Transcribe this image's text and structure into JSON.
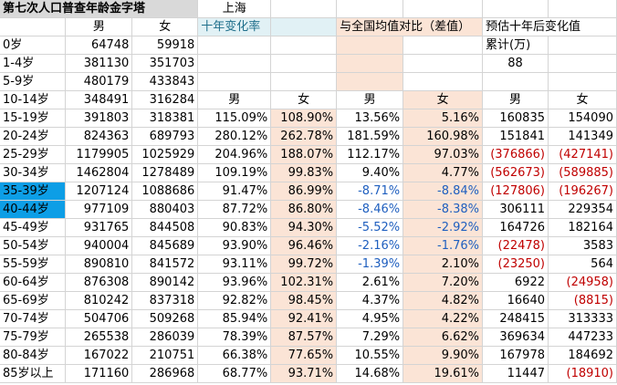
{
  "title": "第七次人口普查年龄金字塔",
  "region": "上海",
  "headers": {
    "male": "男",
    "female": "女",
    "change_rate": "十年变化率",
    "vs_national": "与全国均值对比（差值）",
    "forecast": "预估十年后变化值",
    "cumulative": "累计(万)",
    "cumulative_value": "88"
  },
  "rows": [
    {
      "age": "0岁",
      "m": "64748",
      "f": "59918",
      "mr": "",
      "fr": "",
      "md": "",
      "fd": "",
      "mf": "",
      "ff": ""
    },
    {
      "age": "1-4岁",
      "m": "381130",
      "f": "351703",
      "mr": "",
      "fr": "",
      "md": "",
      "fd": "",
      "mf": "",
      "ff": ""
    },
    {
      "age": "5-9岁",
      "m": "480179",
      "f": "433843",
      "mr": "",
      "fr": "",
      "md": "",
      "fd": "",
      "mf": "",
      "ff": ""
    },
    {
      "age": "10-14岁",
      "m": "348491",
      "f": "316284",
      "mr": "",
      "fr": "",
      "md": "",
      "fd": "",
      "mf": "",
      "ff": ""
    },
    {
      "age": "15-19岁",
      "m": "391803",
      "f": "318381",
      "mr": "115.09%",
      "fr": "108.90%",
      "md": "13.56%",
      "fd": "5.16%",
      "mf": "160835",
      "ff": "154090"
    },
    {
      "age": "20-24岁",
      "m": "824363",
      "f": "689793",
      "mr": "280.12%",
      "fr": "262.78%",
      "md": "181.59%",
      "fd": "160.98%",
      "mf": "151841",
      "ff": "141349"
    },
    {
      "age": "25-29岁",
      "m": "1179905",
      "f": "1025929",
      "mr": "204.96%",
      "fr": "188.07%",
      "md": "112.17%",
      "fd": "97.03%",
      "mf": "(376866)",
      "ff": "(427141)"
    },
    {
      "age": "30-34岁",
      "m": "1462804",
      "f": "1278489",
      "mr": "109.19%",
      "fr": "99.83%",
      "md": "9.40%",
      "fd": "4.77%",
      "mf": "(562673)",
      "ff": "(589885)"
    },
    {
      "age": "35-39岁",
      "m": "1207124",
      "f": "1088686",
      "mr": "91.47%",
      "fr": "86.99%",
      "md": "-8.71%",
      "fd": "-8.84%",
      "mf": "(127806)",
      "ff": "(196267)"
    },
    {
      "age": "40-44岁",
      "m": "977109",
      "f": "880403",
      "mr": "87.72%",
      "fr": "86.80%",
      "md": "-8.46%",
      "fd": "-8.38%",
      "mf": "306111",
      "ff": "229354"
    },
    {
      "age": "45-49岁",
      "m": "931765",
      "f": "844508",
      "mr": "90.83%",
      "fr": "94.30%",
      "md": "-5.52%",
      "fd": "-2.92%",
      "mf": "164726",
      "ff": "182164"
    },
    {
      "age": "50-54岁",
      "m": "940004",
      "f": "845689",
      "mr": "93.90%",
      "fr": "96.46%",
      "md": "-2.16%",
      "fd": "-1.76%",
      "mf": "(22478)",
      "ff": "3583"
    },
    {
      "age": "55-59岁",
      "m": "890810",
      "f": "841572",
      "mr": "93.11%",
      "fr": "99.72%",
      "md": "-1.39%",
      "fd": "2.10%",
      "mf": "(23250)",
      "ff": "564"
    },
    {
      "age": "60-64岁",
      "m": "876308",
      "f": "890142",
      "mr": "93.96%",
      "fr": "102.31%",
      "md": "2.61%",
      "fd": "7.20%",
      "mf": "6922",
      "ff": "(24958)"
    },
    {
      "age": "65-69岁",
      "m": "810242",
      "f": "837318",
      "mr": "92.82%",
      "fr": "98.45%",
      "md": "4.37%",
      "fd": "4.82%",
      "mf": "16640",
      "ff": "(8815)"
    },
    {
      "age": "70-74岁",
      "m": "504706",
      "f": "509268",
      "mr": "85.94%",
      "fr": "92.41%",
      "md": "4.95%",
      "fd": "4.22%",
      "mf": "248415",
      "ff": "313333"
    },
    {
      "age": "75-79岁",
      "m": "265538",
      "f": "286039",
      "mr": "78.39%",
      "fr": "87.57%",
      "md": "7.29%",
      "fd": "6.62%",
      "mf": "369634",
      "ff": "447233"
    },
    {
      "age": "80-84岁",
      "m": "167022",
      "f": "210751",
      "mr": "66.38%",
      "fr": "77.65%",
      "md": "10.55%",
      "fd": "9.90%",
      "mf": "167978",
      "ff": "184692"
    },
    {
      "age": "85岁以上",
      "m": "171160",
      "f": "286968",
      "mr": "68.77%",
      "fr": "93.71%",
      "md": "14.68%",
      "fd": "19.61%",
      "mf": "11447",
      "ff": "(18910)"
    }
  ],
  "colors": {
    "header_grey": "#d9d9d9",
    "peach": "#fbe4d6",
    "teal_header": "#e1f1f5",
    "selected_row": "#0d9ee6",
    "negative_red": "#c00000",
    "negative_blue": "#1f5fbf"
  }
}
